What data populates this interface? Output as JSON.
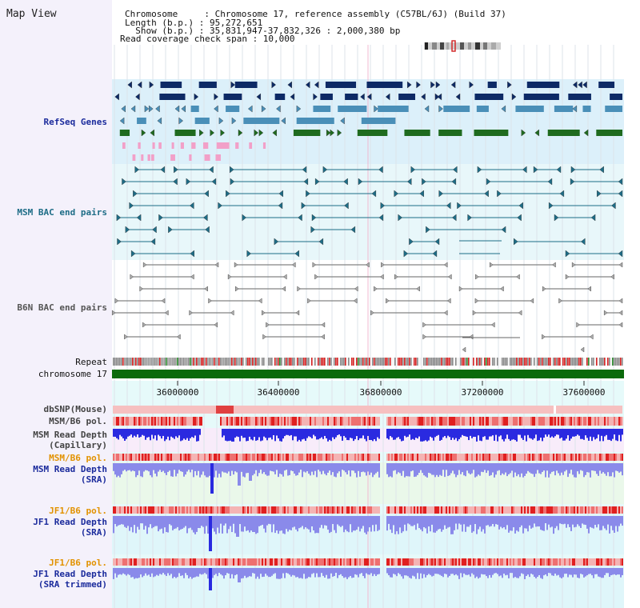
{
  "header": {
    "title": "Map View",
    "lines": [
      "Chromosome     : Chromosome 17, reference assembly (C57BL/6J) (Build 37)",
      "Length (b.p.) : 95,272,651",
      "  Show (b.p.) : 35,831,947-37,832,326 : 2,000,380 bp",
      "Read coverage check span : 10,000"
    ]
  },
  "tracks": {
    "refseq": "RefSeq Genes",
    "msm_bac": "MSM BAC end pairs",
    "b6n_bac": "B6N BAC end pairs",
    "repeat": "Repeat",
    "chromosome": "chromosome 17",
    "dbsnp": "dbSNP(Mouse)",
    "msm_pol": "MSM/B6 pol.",
    "msm_depth_cap_1": "MSM Read Depth",
    "msm_depth_cap_2": "(Capillary)",
    "msm_pol_sra": "MSM/B6 pol.",
    "msm_depth_sra_1": "MSM Read Depth",
    "msm_depth_sra_2": "(SRA)",
    "jf1_pol_1": "JF1/B6 pol.",
    "jf1_depth_1": "JF1 Read Depth",
    "jf1_depth_2": "(SRA)",
    "jf1_pol_2": "JF1/B6 pol.",
    "jf1_depth_t1": "JF1 Read Depth",
    "jf1_depth_t2": "(SRA trimmed)"
  },
  "axis": {
    "ticks": [
      "36000000",
      "36400000",
      "36800000",
      "37200000",
      "37600000"
    ]
  },
  "colors": {
    "refseq_bg": "#dcf0fa",
    "bac_bg": "#e8f7fa",
    "gene_dark": "#0d2a66",
    "gene_mid": "#4a8fb8",
    "gene_green": "#1f6b1f",
    "gene_pink": "#f2a0c8",
    "msm_line": "#1d6c86",
    "b6n_line": "#666666",
    "chromosome": "#0b6a0b",
    "repeat_red": "#d42020",
    "depth_blue": "#2a2ae0",
    "depth_light": "#8a8aea",
    "pol_pink": "#f4b4b4",
    "pol_red": "#e02020",
    "orange_label": "#e29200"
  }
}
